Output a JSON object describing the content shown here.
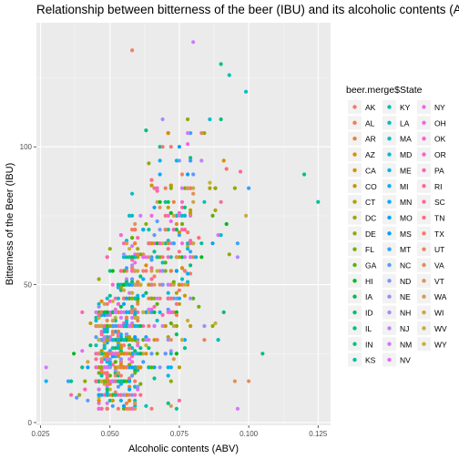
{
  "chart_data": {
    "type": "scatter",
    "title": "Relationship between bitterness of the beer (IBU) and its alcoholic contents (ABV)",
    "xlabel": "Alcoholic contents (ABV)",
    "ylabel": "Bitterness of the Beer (IBU)",
    "xlim": [
      0.0235,
      0.1295
    ],
    "ylim": [
      -1,
      145
    ],
    "x_ticks": [
      0.025,
      0.05,
      0.075,
      0.1,
      0.125
    ],
    "x_tick_labels": [
      "0.025",
      "0.050",
      "0.075",
      "0.100",
      "0.125"
    ],
    "y_ticks": [
      0,
      50,
      100
    ],
    "y_tick_labels": [
      "0",
      "50",
      "100"
    ],
    "grid": true,
    "legend_title": "beer.merge$State",
    "legend_position": "right",
    "states": [
      "AK",
      "AL",
      "AR",
      "AZ",
      "CA",
      "CO",
      "CT",
      "DC",
      "DE",
      "FL",
      "GA",
      "HI",
      "IA",
      "ID",
      "IL",
      "IN",
      "KS",
      "KY",
      "LA",
      "MA",
      "MD",
      "ME",
      "MI",
      "MN",
      "MO",
      "MS",
      "MT",
      "NC",
      "ND",
      "NE",
      "NH",
      "NJ",
      "NM",
      "NV",
      "NY",
      "OH",
      "OK",
      "OR",
      "PA",
      "RI",
      "SC",
      "TN",
      "TX",
      "UT",
      "VA",
      "VT",
      "WA",
      "WI",
      "WV",
      "WY"
    ],
    "state_colors": [
      "#F8766D",
      "#F27D52",
      "#EA8331",
      "#E08B00",
      "#D39200",
      "#C59900",
      "#B4A000",
      "#A3A500",
      "#8EAB00",
      "#75AF00",
      "#53B400",
      "#00B81F",
      "#00BB4E",
      "#00BE6C",
      "#00BF7D",
      "#00C08E",
      "#00C19F",
      "#00C0AF",
      "#00BFBE",
      "#00BDCC",
      "#00BAD8",
      "#00B6E4",
      "#00B0F6",
      "#00A9FF",
      "#00A5FF",
      "#00A0FF",
      "#35A2FF",
      "#5B99FF",
      "#7C96FF",
      "#9590FF",
      "#AC88FF",
      "#C17FFF",
      "#D277FF",
      "#E26EF7",
      "#ED68ED",
      "#F663E1",
      "#FC61D5",
      "#FF62C7",
      "#FF63B6",
      "#FF65A5",
      "#FF6893",
      "#FF6C84",
      "#F8766D",
      "#F08065",
      "#E8895C",
      "#E09254",
      "#D89B4B",
      "#D0A443",
      "#C8AC3A",
      "#C0B532"
    ],
    "notable_points": [
      {
        "x": 0.125,
        "y": 80,
        "state": "KS"
      },
      {
        "x": 0.12,
        "y": 90,
        "state": "IN"
      },
      {
        "x": 0.058,
        "y": 135,
        "state": "UT"
      },
      {
        "x": 0.09,
        "y": 130,
        "state": "IN"
      },
      {
        "x": 0.08,
        "y": 138,
        "state": "NM"
      },
      {
        "x": 0.099,
        "y": 120,
        "state": "MA"
      },
      {
        "x": 0.093,
        "y": 126,
        "state": "KY"
      },
      {
        "x": 0.027,
        "y": 20,
        "state": "NM"
      },
      {
        "x": 0.027,
        "y": 15,
        "state": "MI"
      },
      {
        "x": 0.096,
        "y": 5,
        "state": "NM"
      },
      {
        "x": 0.105,
        "y": 25,
        "state": "IL"
      },
      {
        "x": 0.1,
        "y": 15,
        "state": "VA"
      }
    ]
  }
}
